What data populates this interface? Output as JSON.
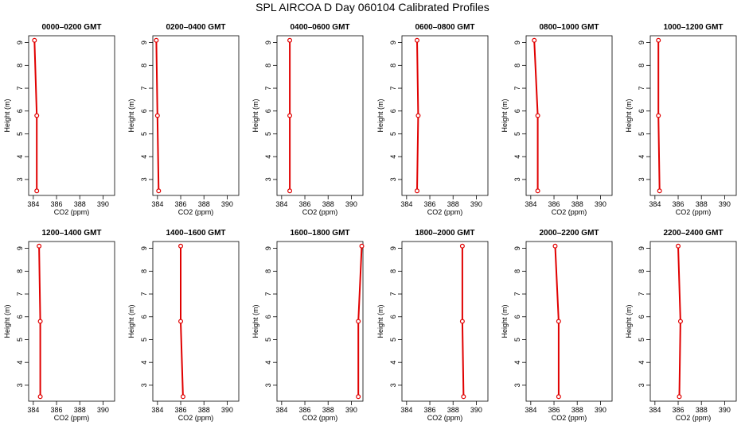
{
  "title": "SPL AIRCOA D  Day 060104  Calibrated Profiles",
  "colors": {
    "series": "#e00000",
    "axes": "#000000"
  },
  "chart_data": [
    {
      "type": "line",
      "title": "0000–0200 GMT",
      "xlabel": "CO2 (ppm)",
      "ylabel": "Height (m)",
      "xlim": [
        383.6,
        391.0
      ],
      "ylim": [
        2.3,
        9.3
      ],
      "xticks": [
        384,
        386,
        388,
        390
      ],
      "yticks": [
        3,
        4,
        5,
        6,
        7,
        8,
        9
      ],
      "grid": false,
      "series": [
        {
          "x": [
            384.1,
            384.3,
            384.3
          ],
          "y": [
            9.1,
            5.8,
            2.5
          ]
        }
      ]
    },
    {
      "type": "line",
      "title": "0200–0400 GMT",
      "xlabel": "CO2 (ppm)",
      "ylabel": "Height (m)",
      "xlim": [
        383.6,
        391.0
      ],
      "ylim": [
        2.3,
        9.3
      ],
      "xticks": [
        384,
        386,
        388,
        390
      ],
      "yticks": [
        3,
        4,
        5,
        6,
        7,
        8,
        9
      ],
      "grid": false,
      "series": [
        {
          "x": [
            383.9,
            384.0,
            384.1
          ],
          "y": [
            9.1,
            5.8,
            2.5
          ]
        }
      ]
    },
    {
      "type": "line",
      "title": "0400–0600 GMT",
      "xlabel": "CO2 (ppm)",
      "ylabel": "Height (m)",
      "xlim": [
        383.6,
        391.0
      ],
      "ylim": [
        2.3,
        9.3
      ],
      "xticks": [
        384,
        386,
        388,
        390
      ],
      "yticks": [
        3,
        4,
        5,
        6,
        7,
        8,
        9
      ],
      "grid": false,
      "series": [
        {
          "x": [
            384.7,
            384.7,
            384.7
          ],
          "y": [
            9.1,
            5.8,
            2.5
          ]
        }
      ]
    },
    {
      "type": "line",
      "title": "0600–0800 GMT",
      "xlabel": "CO2 (ppm)",
      "ylabel": "Height (m)",
      "xlim": [
        383.6,
        391.0
      ],
      "ylim": [
        2.3,
        9.3
      ],
      "xticks": [
        384,
        386,
        388,
        390
      ],
      "yticks": [
        3,
        4,
        5,
        6,
        7,
        8,
        9
      ],
      "grid": false,
      "series": [
        {
          "x": [
            384.9,
            385.0,
            384.9
          ],
          "y": [
            9.1,
            5.8,
            2.5
          ]
        }
      ]
    },
    {
      "type": "line",
      "title": "0800–1000 GMT",
      "xlabel": "CO2 (ppm)",
      "ylabel": "Height (m)",
      "xlim": [
        383.6,
        391.0
      ],
      "ylim": [
        2.3,
        9.3
      ],
      "xticks": [
        384,
        386,
        388,
        390
      ],
      "yticks": [
        3,
        4,
        5,
        6,
        7,
        8,
        9
      ],
      "grid": false,
      "series": [
        {
          "x": [
            384.3,
            384.6,
            384.6
          ],
          "y": [
            9.1,
            5.8,
            2.5
          ]
        }
      ]
    },
    {
      "type": "line",
      "title": "1000–1200 GMT",
      "xlabel": "CO2 (ppm)",
      "ylabel": "Height (m)",
      "xlim": [
        383.6,
        391.0
      ],
      "ylim": [
        2.3,
        9.3
      ],
      "xticks": [
        384,
        386,
        388,
        390
      ],
      "yticks": [
        3,
        4,
        5,
        6,
        7,
        8,
        9
      ],
      "grid": false,
      "series": [
        {
          "x": [
            384.3,
            384.3,
            384.4
          ],
          "y": [
            9.1,
            5.8,
            2.5
          ]
        }
      ]
    },
    {
      "type": "line",
      "title": "1200–1400 GMT",
      "xlabel": "CO2 (ppm)",
      "ylabel": "Height (m)",
      "xlim": [
        383.6,
        391.0
      ],
      "ylim": [
        2.3,
        9.3
      ],
      "xticks": [
        384,
        386,
        388,
        390
      ],
      "yticks": [
        3,
        4,
        5,
        6,
        7,
        8,
        9
      ],
      "grid": false,
      "series": [
        {
          "x": [
            384.5,
            384.6,
            384.6
          ],
          "y": [
            9.1,
            5.8,
            2.5
          ]
        }
      ]
    },
    {
      "type": "line",
      "title": "1400–1600 GMT",
      "xlabel": "CO2 (ppm)",
      "ylabel": "Height (m)",
      "xlim": [
        383.6,
        391.0
      ],
      "ylim": [
        2.3,
        9.3
      ],
      "xticks": [
        384,
        386,
        388,
        390
      ],
      "yticks": [
        3,
        4,
        5,
        6,
        7,
        8,
        9
      ],
      "grid": false,
      "series": [
        {
          "x": [
            386.0,
            386.0,
            386.2
          ],
          "y": [
            9.1,
            5.8,
            2.5
          ]
        }
      ]
    },
    {
      "type": "line",
      "title": "1600–1800 GMT",
      "xlabel": "CO2 (ppm)",
      "ylabel": "Height (m)",
      "xlim": [
        383.6,
        391.0
      ],
      "ylim": [
        2.3,
        9.3
      ],
      "xticks": [
        384,
        386,
        388,
        390
      ],
      "yticks": [
        3,
        4,
        5,
        6,
        7,
        8,
        9
      ],
      "grid": false,
      "series": [
        {
          "x": [
            390.9,
            390.6,
            390.6
          ],
          "y": [
            9.1,
            5.8,
            2.5
          ]
        }
      ]
    },
    {
      "type": "line",
      "title": "1800–2000 GMT",
      "xlabel": "CO2 (ppm)",
      "ylabel": "Height (m)",
      "xlim": [
        383.6,
        391.0
      ],
      "ylim": [
        2.3,
        9.3
      ],
      "xticks": [
        384,
        386,
        388,
        390
      ],
      "yticks": [
        3,
        4,
        5,
        6,
        7,
        8,
        9
      ],
      "grid": false,
      "series": [
        {
          "x": [
            388.8,
            388.8,
            388.9
          ],
          "y": [
            9.1,
            5.8,
            2.5
          ]
        }
      ]
    },
    {
      "type": "line",
      "title": "2000–2200 GMT",
      "xlabel": "CO2 (ppm)",
      "ylabel": "Height (m)",
      "xlim": [
        383.6,
        391.0
      ],
      "ylim": [
        2.3,
        9.3
      ],
      "xticks": [
        384,
        386,
        388,
        390
      ],
      "yticks": [
        3,
        4,
        5,
        6,
        7,
        8,
        9
      ],
      "grid": false,
      "series": [
        {
          "x": [
            386.1,
            386.4,
            386.4
          ],
          "y": [
            9.1,
            5.8,
            2.5
          ]
        }
      ]
    },
    {
      "type": "line",
      "title": "2200–2400 GMT",
      "xlabel": "CO2 (ppm)",
      "ylabel": "Height (m)",
      "xlim": [
        383.6,
        391.0
      ],
      "ylim": [
        2.3,
        9.3
      ],
      "xticks": [
        384,
        386,
        388,
        390
      ],
      "yticks": [
        3,
        4,
        5,
        6,
        7,
        8,
        9
      ],
      "grid": false,
      "series": [
        {
          "x": [
            386.0,
            386.2,
            386.1
          ],
          "y": [
            9.1,
            5.8,
            2.5
          ]
        }
      ]
    }
  ]
}
